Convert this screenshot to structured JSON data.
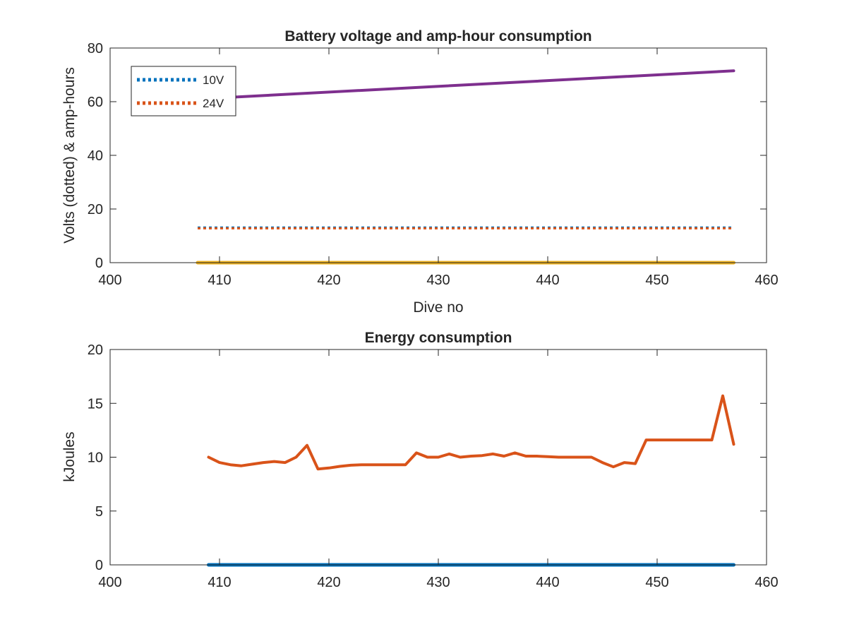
{
  "chart_data": [
    {
      "type": "line",
      "title": "Battery voltage and amp-hour consumption",
      "xlabel": "Dive no",
      "ylabel": "Volts (dotted) & amp-hours",
      "xlim": [
        400,
        460
      ],
      "ylim": [
        0,
        80
      ],
      "xticks": [
        400,
        410,
        420,
        430,
        440,
        450,
        460
      ],
      "yticks": [
        0,
        20,
        40,
        60,
        80
      ],
      "grid": false,
      "legend_position": "top-left",
      "series": [
        {
          "name": "10V",
          "color": "#0072BD",
          "style": "dotted",
          "x": [
            408,
            457
          ],
          "y": [
            13.1,
            13.1
          ]
        },
        {
          "name": "24V",
          "color": "#D95319",
          "style": "dotted",
          "x": [
            408,
            457
          ],
          "y": [
            12.8,
            12.8
          ]
        },
        {
          "color": "#7E2F8E",
          "style": "solid",
          "x": [
            408,
            457
          ],
          "y": [
            61.0,
            71.5
          ]
        },
        {
          "color": "#EDB120",
          "style": "solid",
          "x": [
            408,
            457
          ],
          "y": [
            0,
            0
          ]
        }
      ]
    },
    {
      "type": "line",
      "title": "Energy consumption",
      "xlabel": "",
      "ylabel": "kJoules",
      "xlim": [
        400,
        460
      ],
      "ylim": [
        0,
        20
      ],
      "xticks": [
        400,
        410,
        420,
        430,
        440,
        450,
        460
      ],
      "yticks": [
        0,
        5,
        10,
        15,
        20
      ],
      "grid": false,
      "series": [
        {
          "color": "#0072BD",
          "style": "solid",
          "x": [
            409,
            457
          ],
          "y": [
            0,
            0
          ]
        },
        {
          "color": "#D95319",
          "style": "solid",
          "x": [
            409,
            410,
            411,
            412,
            413,
            414,
            415,
            416,
            417,
            418,
            419,
            420,
            421,
            422,
            423,
            424,
            425,
            426,
            427,
            428,
            429,
            430,
            431,
            432,
            433,
            434,
            435,
            436,
            437,
            438,
            439,
            440,
            441,
            442,
            443,
            444,
            445,
            446,
            447,
            448,
            449,
            450,
            451,
            452,
            453,
            454,
            455,
            456,
            457
          ],
          "y": [
            10.0,
            9.5,
            9.3,
            9.2,
            9.35,
            9.5,
            9.6,
            9.5,
            10.0,
            11.1,
            8.9,
            9.0,
            9.15,
            9.25,
            9.3,
            9.3,
            9.3,
            9.3,
            9.3,
            10.4,
            10.0,
            10.0,
            10.3,
            10.0,
            10.1,
            10.15,
            10.3,
            10.1,
            10.4,
            10.1,
            10.1,
            10.05,
            10.0,
            10.0,
            10.0,
            10.0,
            9.5,
            9.1,
            9.5,
            9.4,
            11.6,
            11.6,
            11.6,
            11.6,
            11.6,
            11.6,
            11.6,
            15.7,
            11.2
          ]
        }
      ]
    }
  ]
}
